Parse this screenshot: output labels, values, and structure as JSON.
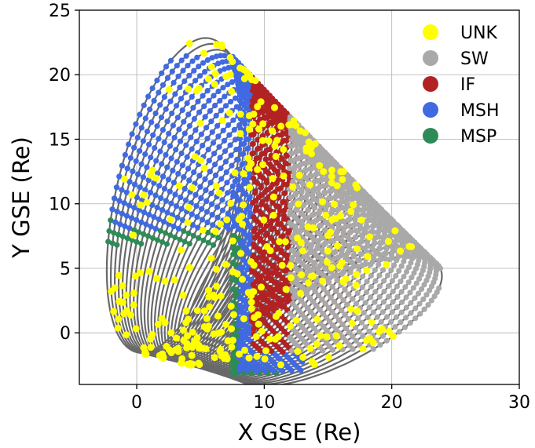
{
  "chart_data": {
    "type": "scatter",
    "xlabel": "X GSE (Re)",
    "ylabel": "Y GSE (Re)",
    "xlim": [
      -4.5,
      30
    ],
    "ylim": [
      -4,
      25
    ],
    "xticks": [
      "0",
      "10",
      "20",
      "30"
    ],
    "yticks": [
      "0",
      "5",
      "10",
      "15",
      "20",
      "25"
    ],
    "grid": true,
    "orbit_color": "#696969",
    "orbits": {
      "count": 40,
      "x_range": [
        -2.6,
        23.8
      ],
      "y_range": [
        -3.3,
        23.2
      ],
      "perigee_x": [
        0.0,
        7.6
      ],
      "perigee_y": [
        -1.5,
        -3.2
      ],
      "apogee_x": [
        5.8,
        23.8
      ],
      "apogee_y": [
        22.8,
        5.0
      ]
    },
    "legend": {
      "position": "top-right",
      "entries": [
        {
          "label": "UNK",
          "color": "#ffff00"
        },
        {
          "label": "SW",
          "color": "#a9a9a9"
        },
        {
          "label": "IF",
          "color": "#b22222"
        },
        {
          "label": "MSH",
          "color": "#4169e1"
        },
        {
          "label": "MSP",
          "color": "#2e8b57"
        }
      ]
    },
    "regions": [
      {
        "label": "MSP",
        "x": [
          -2.6,
          6.5
        ],
        "y": [
          6.8,
          13.0
        ]
      },
      {
        "label": "MSH",
        "x": [
          -2.0,
          10.5
        ],
        "y": [
          8.0,
          21.5
        ]
      },
      {
        "label": "MSP",
        "x": [
          7.5,
          11.0
        ],
        "y": [
          -3.2,
          8.0
        ]
      },
      {
        "label": "MSH",
        "x": [
          8.0,
          13.0
        ],
        "y": [
          -3.0,
          11.0
        ]
      },
      {
        "label": "IF",
        "x": [
          9.0,
          17.0
        ],
        "y": [
          -1.5,
          22.5
        ]
      },
      {
        "label": "SW",
        "x": [
          12.0,
          23.8
        ],
        "y": [
          -1.5,
          23.0
        ]
      },
      {
        "label": "UNK",
        "x": [
          -2.0,
          22.0
        ],
        "y": [
          -2.5,
          22.5
        ]
      }
    ]
  }
}
